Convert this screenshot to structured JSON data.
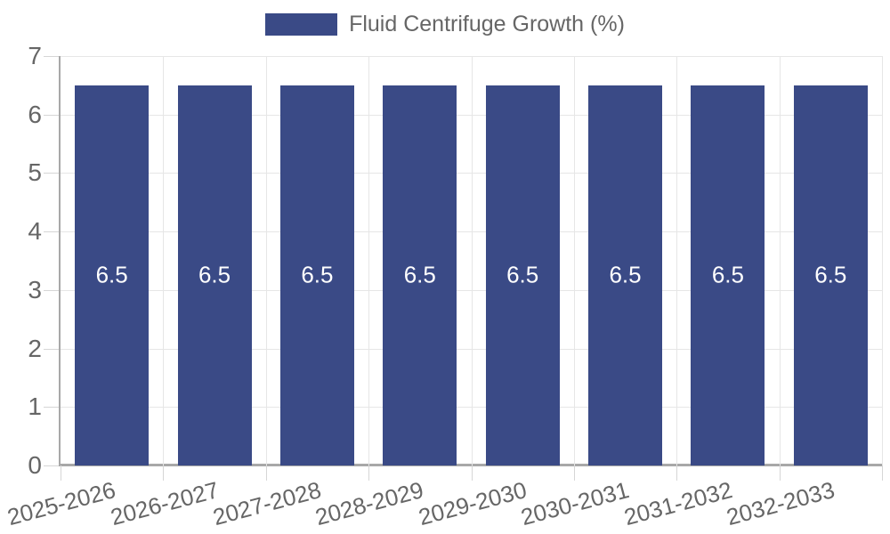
{
  "chart_data": {
    "type": "bar",
    "title": "Fluid Centrifuge Growth (%)",
    "categories": [
      "2025-2026",
      "2026-2027",
      "2027-2028",
      "2028-2029",
      "2029-2030",
      "2030-2031",
      "2031-2032",
      "2032-2033"
    ],
    "values": [
      6.5,
      6.5,
      6.5,
      6.5,
      6.5,
      6.5,
      6.5,
      6.5
    ],
    "bar_value_labels": [
      "6.5",
      "6.5",
      "6.5",
      "6.5",
      "6.5",
      "6.5",
      "6.5",
      "6.5"
    ],
    "ylim": [
      0,
      7
    ],
    "yticks": [
      0,
      1,
      2,
      3,
      4,
      5,
      6,
      7
    ],
    "grid": true,
    "legend_position": "top",
    "xlabel": "",
    "ylabel": "",
    "colors": {
      "bar": "#3a4a86",
      "bar_label": "#ffffff",
      "axis_text": "#666666",
      "gridline": "#e6e6e6",
      "axis_line": "#a8a8a8",
      "tick_mark": "#d6d6d6",
      "background": "#ffffff"
    }
  }
}
